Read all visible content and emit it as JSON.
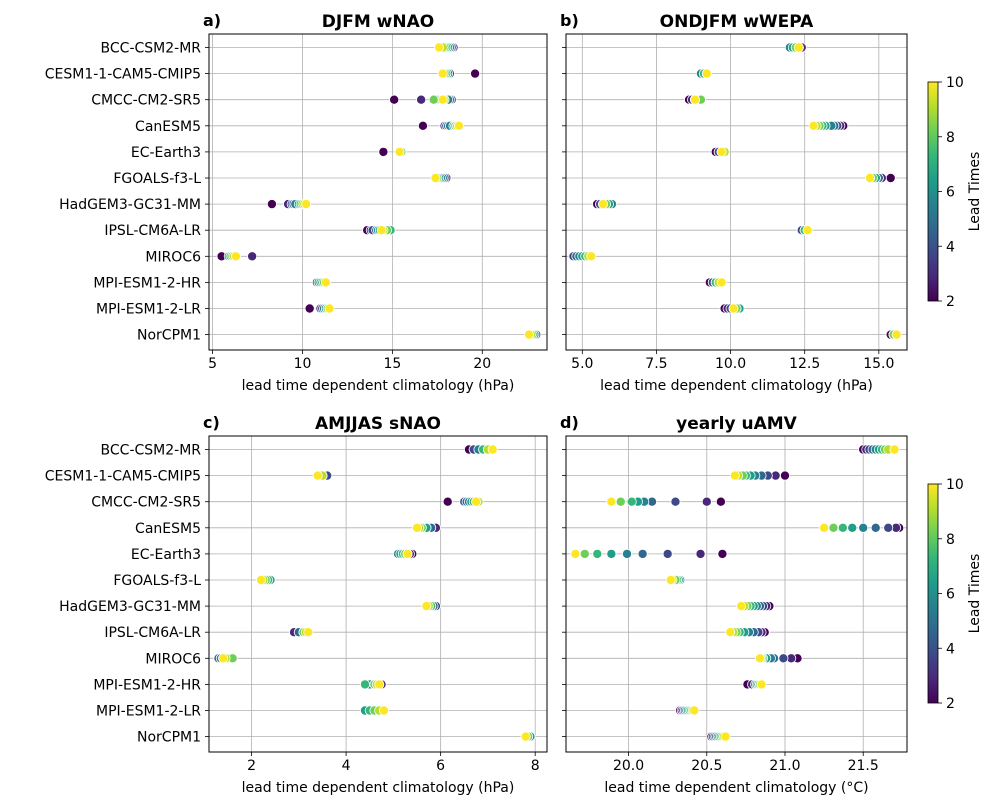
{
  "figure": {
    "models": [
      "BCC-CSM2-MR",
      "CESM1-1-CAM5-CMIP5",
      "CMCC-CM2-SR5",
      "CanESM5",
      "EC-Earth3",
      "FGOALS-f3-L",
      "HadGEM3-GC31-MM",
      "IPSL-CM6A-LR",
      "MIROC6",
      "MPI-ESM1-2-HR",
      "MPI-ESM1-2-LR",
      "NorCPM1"
    ]
  },
  "colorbars": [
    {
      "label": "Lead Times",
      "ticks": [
        "2",
        "4",
        "6",
        "8",
        "10"
      ],
      "range": [
        2,
        10
      ],
      "colormap": "viridis"
    },
    {
      "label": "Lead Times",
      "ticks": [
        "2",
        "4",
        "6",
        "8",
        "10"
      ],
      "range": [
        2,
        10
      ],
      "colormap": "viridis"
    }
  ],
  "chart_data": [
    {
      "type": "scatter",
      "panel": "a)",
      "title": "DJFM wNAO",
      "xlabel": "lead time dependent climatology (hPa)",
      "xlim": [
        4.8,
        23.6
      ],
      "xticks": [
        "5",
        "10",
        "15",
        "20"
      ],
      "grid": true,
      "color_encoding": "lead time 2–10",
      "series": [
        {
          "model": "BCC-CSM2-MR",
          "values": [
            18.4,
            18.4,
            18.3,
            18.3,
            18.2,
            18.1,
            18.0,
            17.9,
            17.8,
            17.6
          ]
        },
        {
          "model": "CESM1-1-CAM5-CMIP5",
          "values": [
            19.6,
            18.2,
            18.2,
            18.1,
            18.0,
            18.0,
            18.0,
            17.9,
            17.8,
            17.8
          ]
        },
        {
          "model": "CMCC-CM2-SR5",
          "values": [
            15.1,
            16.6,
            18.3,
            18.2,
            18.1,
            17.5,
            17.4,
            17.3,
            17.9,
            17.8
          ]
        },
        {
          "model": "CanESM5",
          "values": [
            16.7,
            17.9,
            18.0,
            18.1,
            18.2,
            18.4,
            18.5,
            18.5,
            18.6,
            18.7
          ]
        },
        {
          "model": "EC-Earth3",
          "values": [
            14.5,
            15.4,
            15.4,
            15.5,
            15.5,
            15.4,
            15.5,
            15.5,
            15.4,
            15.4
          ]
        },
        {
          "model": "FGOALS-f3-L",
          "values": [
            18.0,
            18.0,
            17.9,
            17.8,
            17.7,
            17.6,
            17.5,
            17.5,
            17.4,
            17.4
          ]
        },
        {
          "model": "HadGEM3-GC31-MM",
          "values": [
            8.3,
            9.2,
            9.4,
            9.5,
            9.6,
            9.8,
            9.9,
            10.0,
            10.1,
            10.2
          ]
        },
        {
          "model": "IPSL-CM6A-LR",
          "values": [
            13.6,
            13.8,
            13.9,
            14.1,
            14.2,
            14.3,
            14.9,
            14.7,
            14.5,
            14.4
          ]
        },
        {
          "model": "MIROC6",
          "values": [
            5.5,
            7.2,
            6.3,
            6.2,
            6.0,
            5.9,
            6.0,
            6.1,
            6.2,
            6.3
          ]
        },
        {
          "model": "MPI-ESM1-2-HR",
          "values": [
            10.8,
            10.8,
            10.8,
            10.9,
            10.9,
            11.0,
            11.1,
            11.2,
            11.3,
            11.3
          ]
        },
        {
          "model": "MPI-ESM1-2-LR",
          "values": [
            10.4,
            11.0,
            11.1,
            11.2,
            11.3,
            11.3,
            11.4,
            11.4,
            11.5,
            11.5
          ]
        },
        {
          "model": "NorCPM1",
          "values": [
            23.0,
            23.0,
            23.0,
            22.9,
            22.9,
            22.8,
            22.8,
            22.7,
            22.7,
            22.6
          ]
        }
      ]
    },
    {
      "type": "scatter",
      "panel": "b)",
      "title": "ONDJFM wWEPA",
      "xlabel": "lead time dependent climatology (hPa)",
      "xlim": [
        4.45,
        15.95
      ],
      "xticks": [
        "5.0",
        "7.5",
        "10.0",
        "12.5",
        "15.0"
      ],
      "grid": true,
      "color_encoding": "lead time 2–10",
      "series": [
        {
          "model": "BCC-CSM2-MR",
          "values": [
            12.4,
            12.4,
            12.3,
            12.3,
            12.0,
            12.1,
            12.2,
            12.2,
            12.3,
            12.3
          ]
        },
        {
          "model": "CESM1-1-CAM5-CMIP5",
          "values": [
            9.0,
            9.0,
            9.0,
            9.0,
            9.0,
            9.1,
            9.1,
            9.2,
            9.2,
            9.2
          ]
        },
        {
          "model": "CMCC-CM2-SR5",
          "values": [
            8.6,
            8.7,
            8.8,
            8.8,
            8.9,
            8.9,
            9.0,
            9.0,
            8.8,
            8.8
          ]
        },
        {
          "model": "CanESM5",
          "values": [
            13.8,
            13.7,
            13.6,
            13.5,
            13.4,
            13.2,
            13.1,
            13.0,
            12.9,
            12.8
          ]
        },
        {
          "model": "EC-Earth3",
          "values": [
            9.5,
            9.6,
            9.6,
            9.7,
            9.7,
            9.7,
            9.8,
            9.8,
            9.8,
            9.7
          ]
        },
        {
          "model": "FGOALS-f3-L",
          "values": [
            15.4,
            15.1,
            15.0,
            15.0,
            14.9,
            14.9,
            14.8,
            14.8,
            14.7,
            14.7
          ]
        },
        {
          "model": "HadGEM3-GC31-MM",
          "values": [
            5.5,
            5.6,
            5.6,
            5.7,
            6.0,
            5.9,
            5.8,
            5.8,
            5.7,
            5.7
          ]
        },
        {
          "model": "IPSL-CM6A-LR",
          "values": [
            12.4,
            12.4,
            12.4,
            12.5,
            12.5,
            12.5,
            12.5,
            12.6,
            12.6,
            12.6
          ]
        },
        {
          "model": "MIROC6",
          "values": [
            4.7,
            4.7,
            4.7,
            4.8,
            4.9,
            5.0,
            5.1,
            5.2,
            5.2,
            5.3
          ]
        },
        {
          "model": "MPI-ESM1-2-HR",
          "values": [
            9.3,
            9.4,
            9.4,
            9.5,
            9.5,
            9.5,
            9.5,
            9.6,
            9.6,
            9.7
          ]
        },
        {
          "model": "MPI-ESM1-2-LR",
          "values": [
            9.8,
            9.9,
            10.0,
            10.2,
            10.3,
            10.3,
            10.2,
            10.2,
            10.1,
            10.1
          ]
        },
        {
          "model": "NorCPM1",
          "values": [
            15.4,
            15.5,
            15.5,
            15.5,
            15.5,
            15.5,
            15.5,
            15.5,
            15.6,
            15.6
          ]
        }
      ]
    },
    {
      "type": "scatter",
      "panel": "c)",
      "title": "AMJJAS sNAO",
      "xlabel": "lead time dependent climatology (hPa)",
      "xlim": [
        1.1,
        8.25
      ],
      "xticks": [
        "2",
        "4",
        "6",
        "8"
      ],
      "grid": true,
      "color_encoding": "lead time 2–10",
      "series": [
        {
          "model": "BCC-CSM2-MR",
          "values": [
            6.6,
            6.7,
            6.7,
            6.8,
            6.8,
            6.9,
            6.9,
            7.0,
            7.0,
            7.1
          ]
        },
        {
          "model": "CESM1-1-CAM5-CMIP5",
          "values": [
            3.6,
            3.6,
            3.6,
            3.5,
            3.5,
            3.5,
            3.5,
            3.5,
            3.5,
            3.4
          ]
        },
        {
          "model": "CMCC-CM2-SR5",
          "values": [
            6.15,
            6.6,
            6.5,
            6.55,
            6.6,
            6.65,
            6.7,
            6.75,
            6.8,
            6.75
          ]
        },
        {
          "model": "CanESM5",
          "values": [
            5.9,
            5.9,
            5.8,
            5.8,
            5.7,
            5.7,
            5.6,
            5.6,
            5.55,
            5.5
          ]
        },
        {
          "model": "EC-Earth3",
          "values": [
            5.4,
            5.35,
            5.3,
            5.25,
            5.1,
            5.15,
            5.2,
            5.25,
            5.3,
            5.3
          ]
        },
        {
          "model": "FGOALS-f3-L",
          "values": [
            2.3,
            2.3,
            2.3,
            2.3,
            2.4,
            2.4,
            2.35,
            2.3,
            2.25,
            2.2
          ]
        },
        {
          "model": "HadGEM3-GC31-MM",
          "values": [
            5.9,
            5.9,
            5.9,
            5.85,
            5.8,
            5.8,
            5.8,
            5.75,
            5.75,
            5.7
          ]
        },
        {
          "model": "IPSL-CM6A-LR",
          "values": [
            2.9,
            2.9,
            3.0,
            3.0,
            3.1,
            3.1,
            3.1,
            3.1,
            3.15,
            3.2
          ]
        },
        {
          "model": "MIROC6",
          "values": [
            1.5,
            1.4,
            1.4,
            1.3,
            1.35,
            1.4,
            1.5,
            1.6,
            1.45,
            1.4
          ]
        },
        {
          "model": "MPI-ESM1-2-HR",
          "values": [
            4.7,
            4.75,
            4.7,
            4.6,
            4.5,
            4.4,
            4.4,
            4.6,
            4.65,
            4.7
          ]
        },
        {
          "model": "MPI-ESM1-2-LR",
          "values": [
            4.6,
            4.6,
            4.55,
            4.5,
            4.45,
            4.4,
            4.5,
            4.6,
            4.7,
            4.8
          ]
        },
        {
          "model": "NorCPM1",
          "values": [
            7.9,
            7.9,
            7.9,
            7.9,
            7.9,
            7.9,
            7.85,
            7.85,
            7.8,
            7.8
          ]
        }
      ]
    },
    {
      "type": "scatter",
      "panel": "d)",
      "title": "yearly uAMV",
      "xlabel": "lead time dependent climatology (°C)",
      "xlim": [
        19.6,
        21.78
      ],
      "xticks": [
        "20.0",
        "20.5",
        "21.0",
        "21.5"
      ],
      "grid": true,
      "color_encoding": "lead time 2–10",
      "series": [
        {
          "model": "BCC-CSM2-MR",
          "values": [
            21.5,
            21.52,
            21.54,
            21.56,
            21.58,
            21.6,
            21.62,
            21.64,
            21.66,
            21.7
          ]
        },
        {
          "model": "CESM1-1-CAM5-CMIP5",
          "values": [
            21.0,
            20.94,
            20.89,
            20.85,
            20.81,
            20.78,
            20.75,
            20.73,
            20.7,
            20.68
          ]
        },
        {
          "model": "CMCC-CM2-SR5",
          "values": [
            20.59,
            20.5,
            20.3,
            20.15,
            20.1,
            20.06,
            20.02,
            19.95,
            19.89,
            19.89
          ]
        },
        {
          "model": "CanESM5",
          "values": [
            21.73,
            21.71,
            21.66,
            21.58,
            21.5,
            21.43,
            21.37,
            21.31,
            21.25,
            21.25
          ]
        },
        {
          "model": "EC-Earth3",
          "values": [
            20.6,
            20.46,
            20.25,
            20.09,
            19.99,
            19.89,
            19.8,
            19.72,
            19.66,
            19.66
          ]
        },
        {
          "model": "FGOALS-f3-L",
          "values": [
            20.3,
            20.3,
            20.31,
            20.32,
            20.33,
            20.32,
            20.31,
            20.3,
            20.28,
            20.27
          ]
        },
        {
          "model": "HadGEM3-GC31-MM",
          "values": [
            20.9,
            20.88,
            20.86,
            20.84,
            20.82,
            20.8,
            20.78,
            20.76,
            20.74,
            20.72
          ]
        },
        {
          "model": "IPSL-CM6A-LR",
          "values": [
            20.87,
            20.85,
            20.83,
            20.8,
            20.77,
            20.74,
            20.71,
            20.69,
            20.67,
            20.65
          ]
        },
        {
          "model": "MIROC6",
          "values": [
            21.08,
            21.04,
            20.99,
            20.93,
            20.91,
            20.88,
            20.86,
            20.85,
            20.85,
            20.84
          ]
        },
        {
          "model": "MPI-ESM1-2-HR",
          "values": [
            20.76,
            20.79,
            20.81,
            20.81,
            20.82,
            20.83,
            20.83,
            20.84,
            20.85,
            20.85
          ]
        },
        {
          "model": "MPI-ESM1-2-LR",
          "values": [
            20.33,
            20.34,
            20.35,
            20.36,
            20.37,
            20.38,
            20.39,
            20.4,
            20.41,
            20.42
          ]
        },
        {
          "model": "NorCPM1",
          "values": [
            20.53,
            20.54,
            20.55,
            20.56,
            20.57,
            20.58,
            20.59,
            20.6,
            20.61,
            20.62
          ]
        }
      ]
    }
  ]
}
